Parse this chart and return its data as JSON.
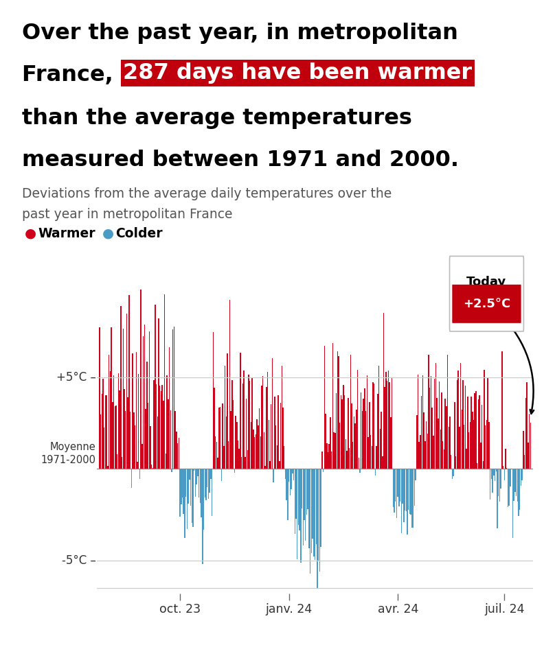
{
  "title_line1": "Over the past year, in metropolitan",
  "title_line2_plain": "France, ",
  "title_highlight": "287 days have been warmer",
  "title_line3": "than the average temperatures",
  "title_line4": "measured between 1971 and 2000.",
  "subtitle_line1": "Deviations from the average daily temperatures over the",
  "subtitle_line2": "past year in metropolitan France",
  "legend_warmer": "Warmer",
  "legend_colder": "Colder",
  "color_warm": "#D0021B",
  "color_cold": "#4A9CC7",
  "color_highlight_bg": "#C0000C",
  "color_highlight_text": "#FFFFFF",
  "ylabel_moyenne_line1": "Moyenne",
  "ylabel_moyenne_line2": "1971-2000",
  "xtick_labels": [
    "oct. 23",
    "janv. 24",
    "avr. 24",
    "juil. 24"
  ],
  "today_label": "Today",
  "today_value": "+2.5°C",
  "ylim": [
    -6.8,
    11.5
  ],
  "background_color": "#FFFFFF",
  "n_days": 365,
  "today_temp": 2.5,
  "grid_color": "#CCCCCC",
  "title_fontsize": 23,
  "subtitle_fontsize": 13.5,
  "legend_fontsize": 13.5
}
